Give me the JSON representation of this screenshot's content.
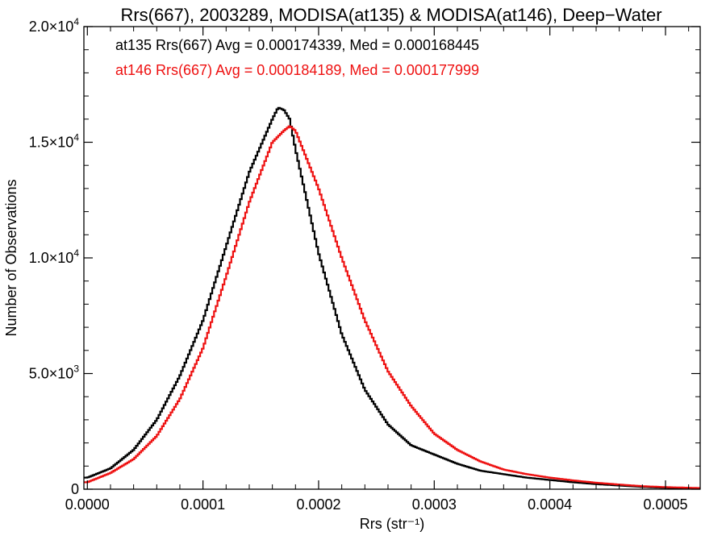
{
  "chart_data": {
    "type": "line",
    "title": "Rrs(667), 2003289, MODISA(at135) & MODISA(at146), Deep−Water",
    "xlabel": "Rrs (str⁻¹)",
    "ylabel": "Number of Observations",
    "xlim": [
      -3e-06,
      0.00053
    ],
    "ylim": [
      0,
      20000
    ],
    "x_ticks": [
      0.0,
      0.0001,
      0.0002,
      0.0003,
      0.0004,
      0.0005
    ],
    "x_tick_labels": [
      "0.0000",
      "0.0001",
      "0.0002",
      "0.0003",
      "0.0004",
      "0.0005"
    ],
    "y_ticks": [
      0,
      5000,
      10000,
      15000,
      20000
    ],
    "y_tick_labels": [
      {
        "mant": "0",
        "exp": ""
      },
      {
        "mant": "5.0×10",
        "exp": "3"
      },
      {
        "mant": "1.0×10",
        "exp": "4"
      },
      {
        "mant": "1.5×10",
        "exp": "4"
      },
      {
        "mant": "2.0×10",
        "exp": "4"
      }
    ],
    "step": "histogram",
    "grid": false,
    "legend_placement": "top-left",
    "series": [
      {
        "name": "at135",
        "legend": "at135 Rrs(667) Avg = 0.000174339, Med = 0.000168445",
        "color": "#000000",
        "x": [
          0.0,
          2e-05,
          4e-05,
          6e-05,
          8e-05,
          0.0001,
          0.00012,
          0.00014,
          0.00016,
          0.000165,
          0.00017,
          0.000175,
          0.00018,
          0.0002,
          0.00022,
          0.00024,
          0.00026,
          0.00028,
          0.0003,
          0.00032,
          0.00034,
          0.00036,
          0.00038,
          0.0004,
          0.00042,
          0.00044,
          0.00046,
          0.00048,
          0.0005,
          0.00053
        ],
        "y": [
          500,
          900,
          1700,
          3000,
          4900,
          7300,
          10500,
          13700,
          16000,
          16500,
          16400,
          16000,
          14700,
          10200,
          6700,
          4300,
          2800,
          1900,
          1500,
          1100,
          800,
          650,
          500,
          400,
          300,
          220,
          160,
          100,
          60,
          30
        ]
      },
      {
        "name": "at146",
        "legend": "at146 Rrs(667) Avg = 0.000184189, Med = 0.000177999",
        "color": "#ee1111",
        "x": [
          0.0,
          2e-05,
          4e-05,
          6e-05,
          8e-05,
          0.0001,
          0.00012,
          0.00014,
          0.00016,
          0.00017,
          0.000175,
          0.00018,
          0.0002,
          0.00022,
          0.00024,
          0.00026,
          0.00028,
          0.0003,
          0.00032,
          0.00034,
          0.00036,
          0.00038,
          0.0004,
          0.00042,
          0.00044,
          0.00046,
          0.00048,
          0.0005,
          0.00053
        ],
        "y": [
          300,
          700,
          1300,
          2300,
          3900,
          6100,
          9200,
          12400,
          15000,
          15500,
          15700,
          15500,
          13000,
          10000,
          7300,
          5100,
          3600,
          2400,
          1700,
          1200,
          850,
          650,
          500,
          380,
          280,
          200,
          130,
          90,
          50
        ]
      }
    ]
  }
}
